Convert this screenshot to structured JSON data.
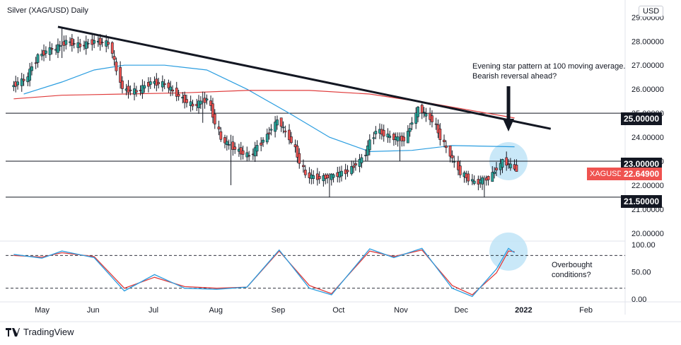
{
  "header": {
    "title": "Silver (XAG/USD) Daily",
    "currency": "USD"
  },
  "annotations": {
    "top_note_line1": "Evening star pattern at 100 moving average.",
    "top_note_line2": "Bearish reversal ahead?",
    "bottom_note_line1": "Overbought",
    "bottom_note_line2": "conditions?"
  },
  "branding": {
    "logo_text": "TradingView"
  },
  "price_tags": {
    "level_25": "25.00000",
    "level_23": "23.00000",
    "level_21_5": "21.50000",
    "symbol": "XAGUSD",
    "last_price": "22.64900"
  },
  "colors": {
    "bull": "#26a69a",
    "bear": "#ef5350",
    "ma_fast": "#2a9de0",
    "ma_slow": "#e03c3c",
    "stoch_k": "#2a9de0",
    "stoch_d": "#e03c3c",
    "highlight": "#bfe4f7"
  },
  "chart_data": {
    "type": "candlestick",
    "symbol": "Silver (XAG/USD)",
    "timeframe": "Daily",
    "price_axis": {
      "ticks": [
        "29.00000",
        "28.00000",
        "27.00000",
        "26.00000",
        "25.00000",
        "24.00000",
        "23.00000",
        "22.00000",
        "21.00000",
        "20.00000"
      ],
      "ylim": [
        19.7,
        29.6
      ]
    },
    "osc_axis": {
      "ticks": [
        "100.00",
        "50.00",
        "0.00"
      ],
      "ylim": [
        -5,
        105
      ],
      "dashed_levels": [
        80,
        20
      ]
    },
    "time_axis": {
      "labels": [
        "May",
        "Jun",
        "Jul",
        "Aug",
        "Sep",
        "Oct",
        "Nov",
        "Dec",
        "2022",
        "Feb"
      ]
    },
    "horizontal_levels": [
      25.0,
      23.0,
      21.5
    ],
    "trendline": {
      "from": [
        "2021-05-18",
        28.6
      ],
      "to": [
        "2022-01-18",
        24.35
      ]
    },
    "candles_ohlc_weekly_summary": [
      {
        "date": "2021-04-26",
        "o": 26.1,
        "h": 26.8,
        "l": 25.7,
        "c": 26.4
      },
      {
        "date": "2021-05-03",
        "o": 26.3,
        "h": 27.5,
        "l": 25.8,
        "c": 27.4
      },
      {
        "date": "2021-05-10",
        "o": 27.4,
        "h": 28.0,
        "l": 27.0,
        "c": 27.7
      },
      {
        "date": "2021-05-17",
        "o": 27.6,
        "h": 28.6,
        "l": 27.3,
        "c": 28.0
      },
      {
        "date": "2021-05-24",
        "o": 28.0,
        "h": 28.3,
        "l": 27.5,
        "c": 27.8
      },
      {
        "date": "2021-05-31",
        "o": 27.8,
        "h": 28.4,
        "l": 27.3,
        "c": 28.0
      },
      {
        "date": "2021-06-07",
        "o": 28.0,
        "h": 28.3,
        "l": 27.4,
        "c": 27.9
      },
      {
        "date": "2021-06-14",
        "o": 27.9,
        "h": 28.0,
        "l": 25.8,
        "c": 26.0
      },
      {
        "date": "2021-06-21",
        "o": 26.0,
        "h": 26.4,
        "l": 25.5,
        "c": 25.9
      },
      {
        "date": "2021-06-28",
        "o": 25.9,
        "h": 26.5,
        "l": 25.6,
        "c": 26.3
      },
      {
        "date": "2021-07-05",
        "o": 26.3,
        "h": 26.7,
        "l": 25.9,
        "c": 26.2
      },
      {
        "date": "2021-07-12",
        "o": 26.2,
        "h": 26.4,
        "l": 25.5,
        "c": 25.7
      },
      {
        "date": "2021-07-19",
        "o": 25.7,
        "h": 25.9,
        "l": 24.9,
        "c": 25.3
      },
      {
        "date": "2021-07-26",
        "o": 25.3,
        "h": 25.9,
        "l": 24.6,
        "c": 25.6
      },
      {
        "date": "2021-08-02",
        "o": 25.6,
        "h": 25.8,
        "l": 23.8,
        "c": 23.9
      },
      {
        "date": "2021-08-09",
        "o": 23.9,
        "h": 24.1,
        "l": 22.0,
        "c": 23.5
      },
      {
        "date": "2021-08-16",
        "o": 23.5,
        "h": 23.8,
        "l": 23.0,
        "c": 23.2
      },
      {
        "date": "2021-08-23",
        "o": 23.2,
        "h": 24.0,
        "l": 22.9,
        "c": 23.9
      },
      {
        "date": "2021-08-30",
        "o": 23.9,
        "h": 24.9,
        "l": 23.7,
        "c": 24.7
      },
      {
        "date": "2021-09-06",
        "o": 24.7,
        "h": 24.8,
        "l": 23.7,
        "c": 23.8
      },
      {
        "date": "2021-09-13",
        "o": 23.8,
        "h": 23.9,
        "l": 22.3,
        "c": 22.4
      },
      {
        "date": "2021-09-20",
        "o": 22.4,
        "h": 22.9,
        "l": 21.8,
        "c": 22.3
      },
      {
        "date": "2021-09-27",
        "o": 22.3,
        "h": 22.5,
        "l": 21.5,
        "c": 22.4
      },
      {
        "date": "2021-10-04",
        "o": 22.4,
        "h": 22.9,
        "l": 22.1,
        "c": 22.6
      },
      {
        "date": "2021-10-11",
        "o": 22.6,
        "h": 23.3,
        "l": 22.4,
        "c": 23.1
      },
      {
        "date": "2021-10-18",
        "o": 23.1,
        "h": 24.7,
        "l": 23.0,
        "c": 24.3
      },
      {
        "date": "2021-10-25",
        "o": 24.3,
        "h": 24.8,
        "l": 23.7,
        "c": 24.0
      },
      {
        "date": "2021-11-01",
        "o": 24.0,
        "h": 24.2,
        "l": 23.0,
        "c": 23.9
      },
      {
        "date": "2021-11-08",
        "o": 23.9,
        "h": 25.3,
        "l": 23.8,
        "c": 25.2
      },
      {
        "date": "2021-11-15",
        "o": 25.2,
        "h": 25.4,
        "l": 24.4,
        "c": 24.7
      },
      {
        "date": "2021-11-22",
        "o": 24.7,
        "h": 24.9,
        "l": 23.1,
        "c": 23.5
      },
      {
        "date": "2021-11-29",
        "o": 23.5,
        "h": 23.6,
        "l": 22.3,
        "c": 22.5
      },
      {
        "date": "2021-12-06",
        "o": 22.5,
        "h": 22.6,
        "l": 22.0,
        "c": 22.1
      },
      {
        "date": "2021-12-13",
        "o": 22.1,
        "h": 22.4,
        "l": 21.5,
        "c": 22.3
      },
      {
        "date": "2021-12-20",
        "o": 22.3,
        "h": 23.1,
        "l": 22.2,
        "c": 23.0
      },
      {
        "date": "2021-12-27",
        "o": 23.0,
        "h": 23.5,
        "l": 22.6,
        "c": 22.65
      }
    ],
    "moving_averages": [
      {
        "name": "100 MA",
        "color": "#2a9de0",
        "points": [
          [
            "2021-05-01",
            25.8
          ],
          [
            "2021-05-20",
            26.3
          ],
          [
            "2021-06-05",
            26.8
          ],
          [
            "2021-06-20",
            27.0
          ],
          [
            "2021-07-10",
            27.0
          ],
          [
            "2021-07-31",
            26.8
          ],
          [
            "2021-08-20",
            26.0
          ],
          [
            "2021-09-10",
            25.0
          ],
          [
            "2021-09-30",
            24.0
          ],
          [
            "2021-10-20",
            23.4
          ],
          [
            "2021-11-10",
            23.45
          ],
          [
            "2021-11-30",
            23.65
          ],
          [
            "2021-12-31",
            23.6
          ]
        ]
      },
      {
        "name": "200 MA",
        "color": "#e03c3c",
        "points": [
          [
            "2021-04-26",
            25.6
          ],
          [
            "2021-05-20",
            25.75
          ],
          [
            "2021-06-20",
            25.8
          ],
          [
            "2021-07-20",
            25.85
          ],
          [
            "2021-08-20",
            25.95
          ],
          [
            "2021-09-20",
            25.95
          ],
          [
            "2021-10-20",
            25.8
          ],
          [
            "2021-11-20",
            25.4
          ],
          [
            "2021-12-31",
            24.8
          ]
        ]
      }
    ],
    "stochastic": {
      "k_points": [
        [
          "2021-04-26",
          82
        ],
        [
          "2021-05-10",
          75
        ],
        [
          "2021-05-20",
          88
        ],
        [
          "2021-06-05",
          76
        ],
        [
          "2021-06-20",
          15
        ],
        [
          "2021-07-05",
          45
        ],
        [
          "2021-07-20",
          20
        ],
        [
          "2021-08-05",
          18
        ],
        [
          "2021-08-20",
          22
        ],
        [
          "2021-09-05",
          90
        ],
        [
          "2021-09-20",
          20
        ],
        [
          "2021-10-01",
          8
        ],
        [
          "2021-10-20",
          92
        ],
        [
          "2021-11-01",
          76
        ],
        [
          "2021-11-15",
          93
        ],
        [
          "2021-11-30",
          20
        ],
        [
          "2021-12-10",
          5
        ],
        [
          "2021-12-22",
          55
        ],
        [
          "2021-12-28",
          93
        ],
        [
          "2021-12-31",
          85
        ]
      ],
      "d_points": [
        [
          "2021-04-26",
          80
        ],
        [
          "2021-05-10",
          77
        ],
        [
          "2021-05-20",
          85
        ],
        [
          "2021-06-05",
          78
        ],
        [
          "2021-06-20",
          20
        ],
        [
          "2021-07-05",
          40
        ],
        [
          "2021-07-20",
          23
        ],
        [
          "2021-08-05",
          20
        ],
        [
          "2021-08-20",
          22
        ],
        [
          "2021-09-05",
          88
        ],
        [
          "2021-09-20",
          25
        ],
        [
          "2021-10-01",
          10
        ],
        [
          "2021-10-20",
          88
        ],
        [
          "2021-11-01",
          78
        ],
        [
          "2021-11-15",
          90
        ],
        [
          "2021-11-30",
          25
        ],
        [
          "2021-12-10",
          8
        ],
        [
          "2021-12-22",
          48
        ],
        [
          "2021-12-28",
          88
        ],
        [
          "2021-12-31",
          87
        ]
      ]
    }
  }
}
